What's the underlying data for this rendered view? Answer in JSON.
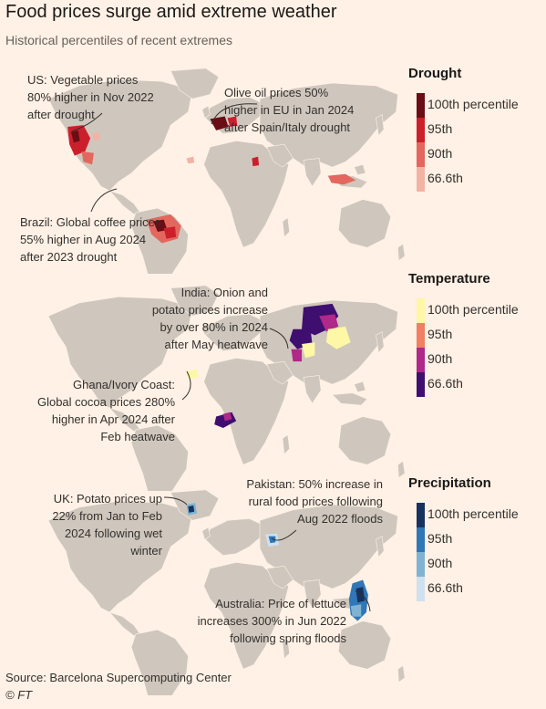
{
  "header": {
    "title": "Food prices surge amid extreme weather",
    "subtitle": "Historical percentiles of recent extremes"
  },
  "panels": [
    {
      "legend_title": "Drought",
      "colors": [
        "#6a0d14",
        "#cc1f2c",
        "#e3675e",
        "#f2b3a5"
      ],
      "labels": [
        "100th percentile",
        "95th",
        "90th",
        "66.6th"
      ],
      "annotations": [
        "US: Vegetable prices\n80% higher in Nov 2022\nafter drought",
        "Olive oil prices 50%\nhigher in EU in Jan 2024\nafter Spain/Italy drought",
        "Brazil: Global coffee prices\n55% higher in Aug 2024\nafter 2023 drought"
      ]
    },
    {
      "legend_title": "Temperature",
      "colors": [
        "#fdf7a6",
        "#f07f64",
        "#b0288a",
        "#3e0f6f"
      ],
      "labels": [
        "100th percentile",
        "95th",
        "90th",
        "66.6th"
      ],
      "annotations": [
        "India: Onion and\npotato prices increase\nby over 80% in 2024\nafter May heatwave",
        "Ghana/Ivory Coast:\nGlobal cocoa prices 280%\nhigher in Apr 2024 after\nFeb heatwave"
      ]
    },
    {
      "legend_title": "Precipitation",
      "colors": [
        "#17325e",
        "#2f77b6",
        "#7fb3d1",
        "#cfe0ee"
      ],
      "labels": [
        "100th percentile",
        "95th",
        "90th",
        "66.6th"
      ],
      "annotations": [
        "UK: Potato prices up\n22% from Jan to Feb\n2024 following wet\nwinter",
        "Pakistan: 50% increase in\nrural food prices following\nAug 2022 floods",
        "Australia: Price of lettuce\nincreases 300% in Jun 2022\nfollowing spring floods"
      ]
    }
  ],
  "footer": {
    "source": "Source: Barcelona Supercomputing Center",
    "credit": "© FT"
  }
}
